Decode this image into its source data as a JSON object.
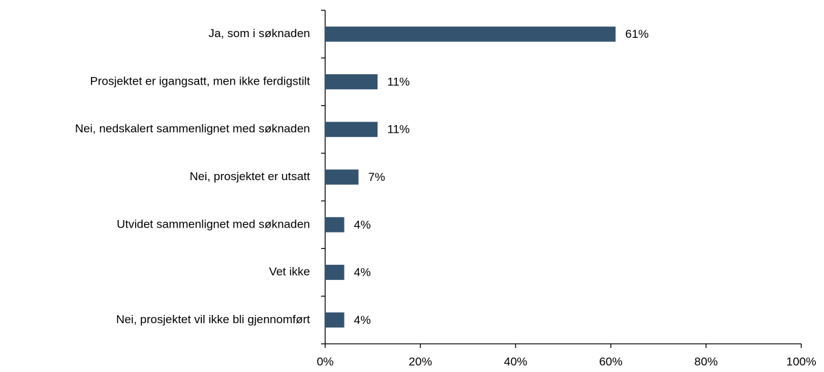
{
  "chart_data": {
    "type": "bar",
    "orientation": "horizontal",
    "categories": [
      "Ja, som i søknaden",
      "Prosjektet er igangsatt, men ikke ferdigstilt",
      "Nei, nedskalert sammenlignet med søknaden",
      "Nei, prosjektet er utsatt",
      "Utvidet sammenlignet med søknaden",
      "Vet ikke",
      "Nei, prosjektet vil ikke bli gjennomført"
    ],
    "values": [
      61,
      11,
      11,
      7,
      4,
      4,
      4
    ],
    "value_labels": [
      "61%",
      "11%",
      "11%",
      "7%",
      "4%",
      "4%",
      "4%"
    ],
    "color": "#34536f",
    "xlim": [
      0,
      100
    ],
    "xticks": [
      {
        "value": 0,
        "label": "0%"
      },
      {
        "value": 20,
        "label": "20%"
      },
      {
        "value": 40,
        "label": "40%"
      },
      {
        "value": 60,
        "label": "60%"
      },
      {
        "value": 80,
        "label": "80%"
      },
      {
        "value": 100,
        "label": "100%"
      }
    ],
    "grid": false
  }
}
